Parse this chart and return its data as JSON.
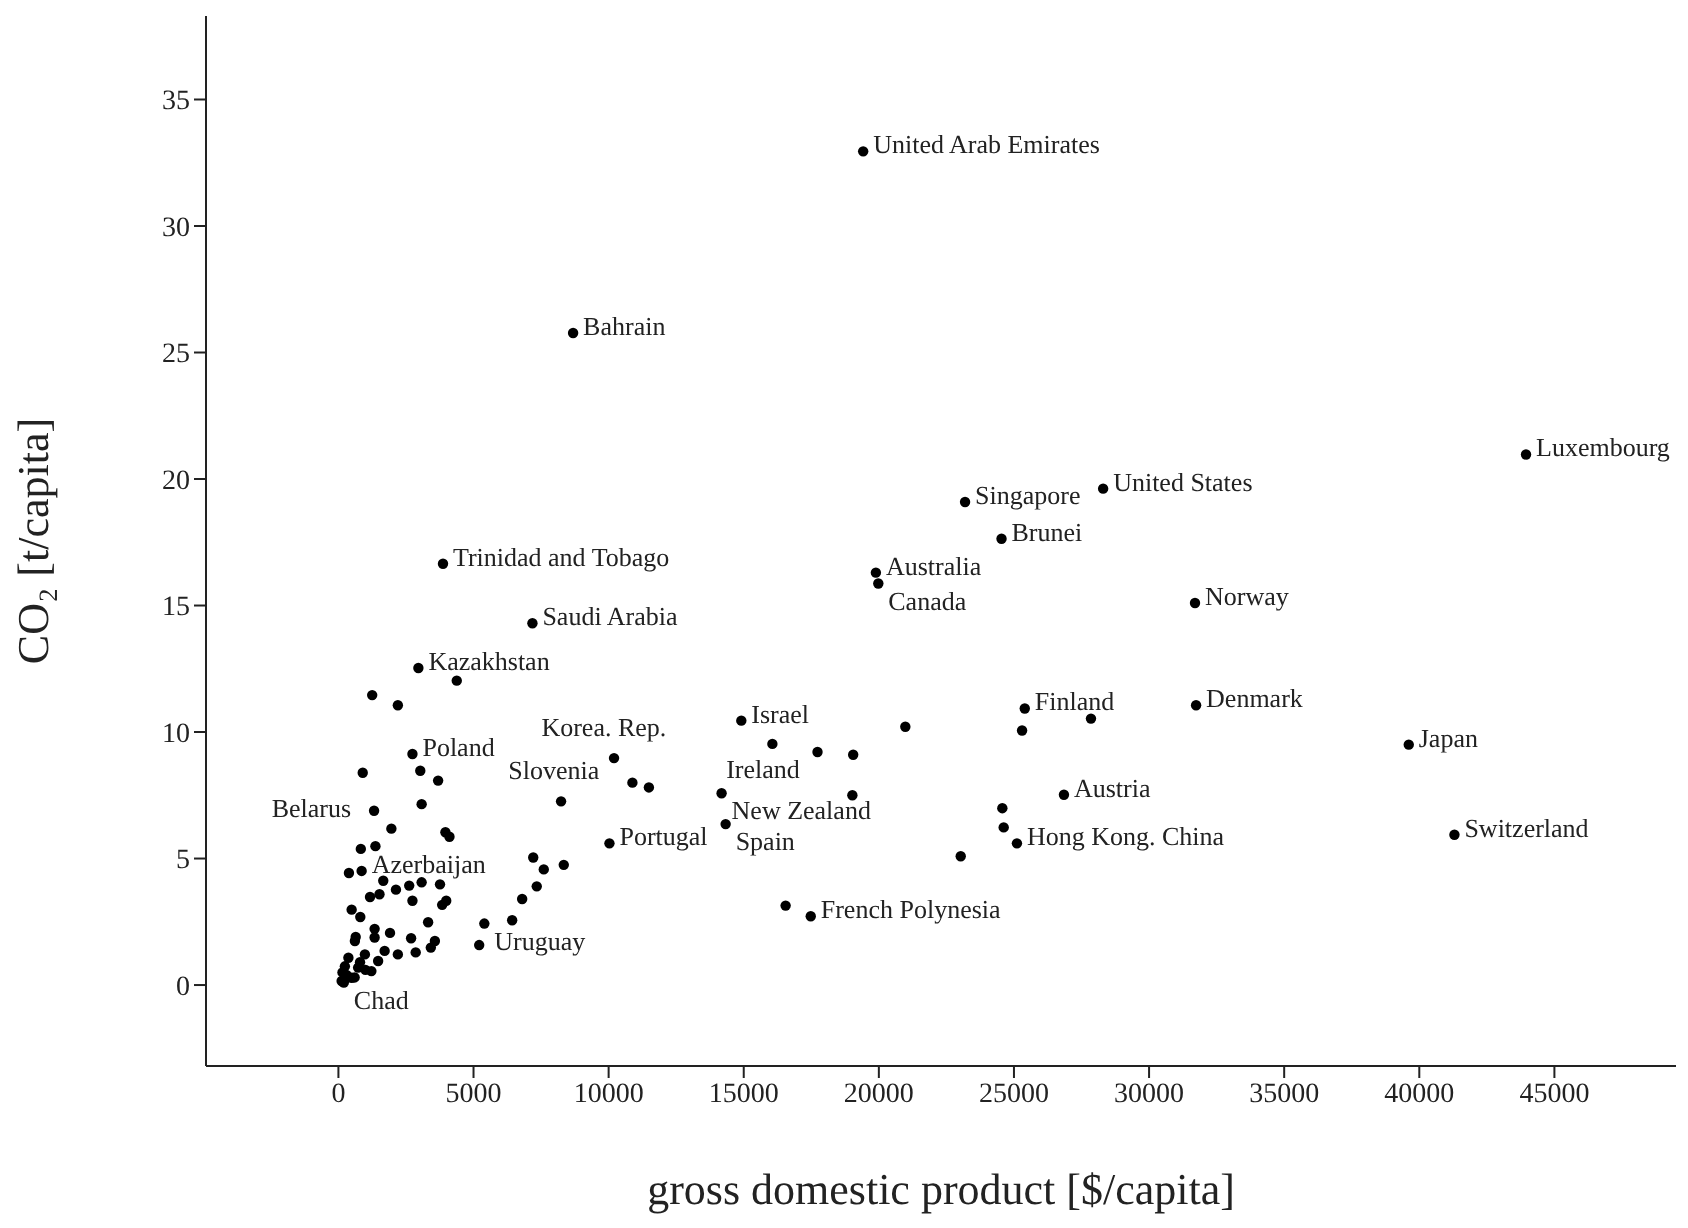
{
  "chart_data": {
    "type": "scatter",
    "xlabel": "gross domestic product [$/capita]",
    "ylabel": "CO₂ [t/capita]",
    "xlim": [
      -4900,
      49500
    ],
    "ylim": [
      -3.2,
      38.3
    ],
    "xticks": [
      0,
      5000,
      10000,
      15000,
      20000,
      25000,
      30000,
      35000,
      40000,
      45000
    ],
    "yticks": [
      0,
      5,
      10,
      15,
      20,
      25,
      30,
      35
    ],
    "grid": false,
    "legend": false,
    "marker": "circle",
    "series": [
      {
        "color": "#000000",
        "x": [
          19420,
          8685,
          43950,
          23190,
          28300,
          24540,
          3870,
          19890,
          19980,
          31700,
          7180,
          2960,
          4380,
          1250,
          2200,
          14910,
          16060,
          17730,
          19050,
          20980,
          25400,
          25300,
          27850,
          31740,
          39610,
          41300,
          10200,
          10880,
          11490,
          8240,
          14180,
          19020,
          26850,
          14330,
          24570,
          24620,
          25110,
          23030,
          10030,
          17480,
          16550,
          7210,
          7600,
          8340,
          7340,
          6800,
          6430,
          5400,
          5210,
          2740,
          3030,
          3690,
          900,
          3080,
          1320,
          1960,
          3960,
          4110,
          830,
          1370,
          390,
          860,
          1660,
          2130,
          2620,
          3080,
          3760,
          1170,
          1520,
          2740,
          3840,
          3990,
          490,
          810,
          3320,
          1340,
          1910,
          640,
          2690,
          3570,
          3420,
          2860,
          120,
          490,
          1220,
          370,
          980,
          1710,
          2200,
          730,
          240,
          1470,
          610,
          1340,
          200,
          300,
          800,
          150,
          600,
          1000
        ],
        "values": [
          32.95,
          25.77,
          20.97,
          19.09,
          19.62,
          17.64,
          16.65,
          16.3,
          15.87,
          15.1,
          14.3,
          12.53,
          12.03,
          11.46,
          11.06,
          10.45,
          9.53,
          9.21,
          9.1,
          10.21,
          10.93,
          10.06,
          10.53,
          11.06,
          9.5,
          5.94,
          8.97,
          8.0,
          7.81,
          7.26,
          7.58,
          7.5,
          7.52,
          6.36,
          6.99,
          6.23,
          5.6,
          5.09,
          5.6,
          2.72,
          3.14,
          5.04,
          4.57,
          4.75,
          3.9,
          3.4,
          2.56,
          2.43,
          1.58,
          9.13,
          8.47,
          8.08,
          8.39,
          7.15,
          6.89,
          6.18,
          6.04,
          5.86,
          5.38,
          5.49,
          4.43,
          4.51,
          4.12,
          3.77,
          3.93,
          4.06,
          3.98,
          3.48,
          3.59,
          3.33,
          3.17,
          3.33,
          2.98,
          2.69,
          2.48,
          2.22,
          2.06,
          1.9,
          1.85,
          1.74,
          1.48,
          1.29,
          0.16,
          0.29,
          0.55,
          1.08,
          1.21,
          1.35,
          1.21,
          0.69,
          0.74,
          0.95,
          1.74,
          1.88,
          0.1,
          0.4,
          0.9,
          0.5,
          0.3,
          0.6
        ]
      }
    ],
    "annotations": [
      {
        "text": "United Arab Emirates",
        "x": 19420,
        "y": 32.95
      },
      {
        "text": "Bahrain",
        "x": 8685,
        "y": 25.77
      },
      {
        "text": "Luxembourg",
        "x": 43950,
        "y": 20.97
      },
      {
        "text": "Singapore",
        "x": 23190,
        "y": 19.09
      },
      {
        "text": "United States",
        "x": 28300,
        "y": 19.62
      },
      {
        "text": "Brunei",
        "x": 24540,
        "y": 17.64
      },
      {
        "text": "Trinidad and Tobago",
        "x": 3870,
        "y": 16.65
      },
      {
        "text": "Australia",
        "x": 19890,
        "y": 16.3
      },
      {
        "text": "Canada",
        "x": 19980,
        "y": 15.87
      },
      {
        "text": "Norway",
        "x": 31700,
        "y": 15.1
      },
      {
        "text": "Saudi Arabia",
        "x": 7180,
        "y": 14.3
      },
      {
        "text": "Kazakhstan",
        "x": 2960,
        "y": 12.53
      },
      {
        "text": "Israel",
        "x": 14910,
        "y": 10.45
      },
      {
        "text": "Ireland",
        "x": 16060,
        "y": 9.53
      },
      {
        "text": "Finland",
        "x": 25400,
        "y": 10.93
      },
      {
        "text": "Denmark",
        "x": 31740,
        "y": 11.06
      },
      {
        "text": "Japan",
        "x": 39610,
        "y": 9.5
      },
      {
        "text": "Switzerland",
        "x": 41300,
        "y": 5.94
      },
      {
        "text": "Korea. Rep.",
        "x": 10200,
        "y": 8.97
      },
      {
        "text": "Slovenia",
        "x": 8240,
        "y": 7.26
      },
      {
        "text": "New Zealand",
        "x": 14180,
        "y": 7.58
      },
      {
        "text": "Austria",
        "x": 26850,
        "y": 7.52
      },
      {
        "text": "Spain",
        "x": 14330,
        "y": 6.36
      },
      {
        "text": "Hong Kong. China",
        "x": 25110,
        "y": 5.6
      },
      {
        "text": "Portugal",
        "x": 10030,
        "y": 5.6
      },
      {
        "text": "French Polynesia",
        "x": 17480,
        "y": 2.72
      },
      {
        "text": "Uruguay",
        "x": 5400,
        "y": 2.43
      },
      {
        "text": "Poland",
        "x": 2740,
        "y": 9.13
      },
      {
        "text": "Belarus",
        "x": 1320,
        "y": 6.89
      },
      {
        "text": "Azerbaijan",
        "x": 860,
        "y": 4.51
      },
      {
        "text": "Chad",
        "x": 200,
        "y": 0.1
      }
    ]
  }
}
